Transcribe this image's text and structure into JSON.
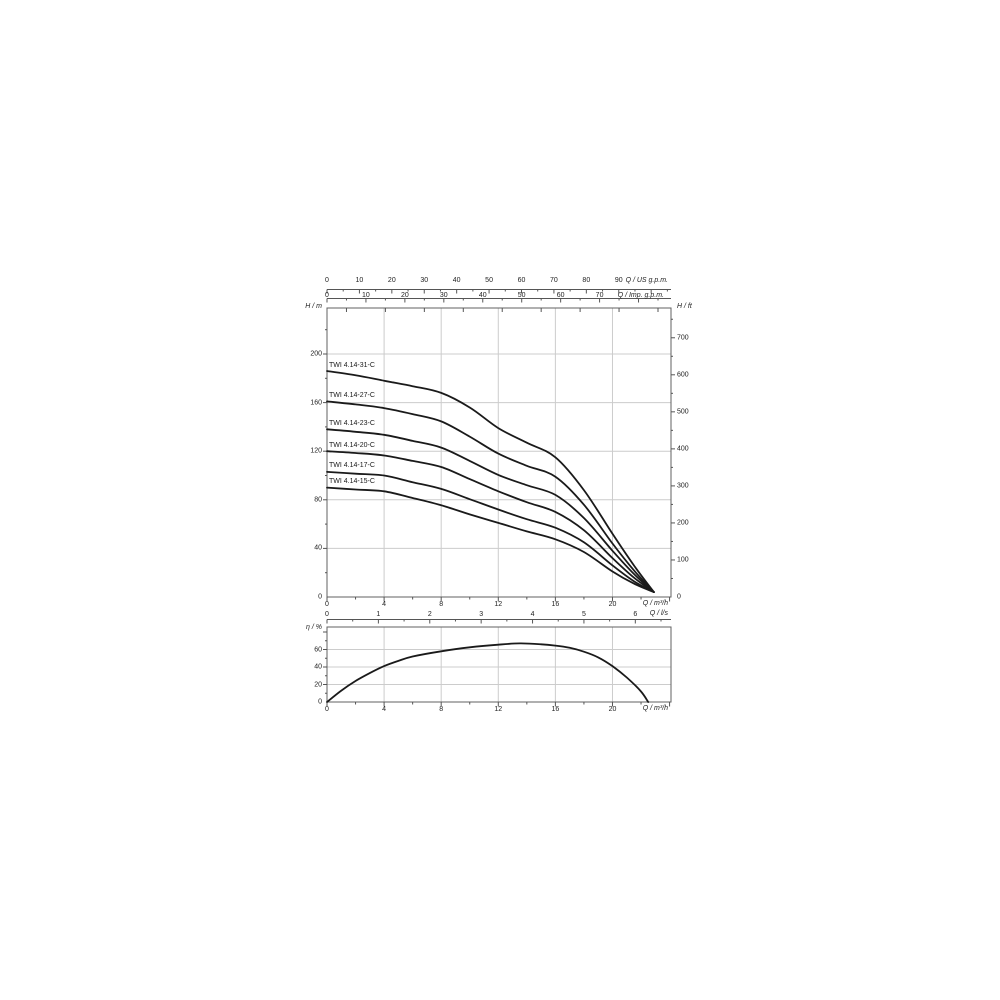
{
  "colors": {
    "background": "#ffffff",
    "curve": "#1a1a1a",
    "grid": "#cccccc",
    "frame": "#606060",
    "axis": "#555555",
    "text": "#222222"
  },
  "axes": {
    "us": {
      "label": "Q / US g.p.m.",
      "ticks": [
        0,
        10,
        20,
        30,
        40,
        50,
        60,
        70,
        80,
        90
      ]
    },
    "imp": {
      "label": "Q / Imp. g.p.m.",
      "ticks": [
        0,
        10,
        20,
        30,
        40,
        50,
        60,
        70
      ]
    },
    "h_m": {
      "label": "H / m",
      "ticks": [
        0,
        40,
        80,
        120,
        160,
        200
      ]
    },
    "h_ft": {
      "label": "H / ft",
      "ticks": [
        0,
        100,
        200,
        300,
        400,
        500,
        600,
        700
      ]
    },
    "q_m3h": {
      "label": "Q / m³/h",
      "ticks": [
        0,
        4,
        8,
        12,
        16,
        20
      ]
    },
    "q_ls": {
      "label": "Q / l/s",
      "ticks": [
        0,
        1,
        2,
        3,
        4,
        5,
        6
      ]
    },
    "eta": {
      "label": "η / %",
      "ticks": [
        0,
        20,
        40,
        60
      ]
    }
  },
  "chart_data": [
    {
      "type": "line",
      "xlabel": "Q / m³/h",
      "ylabel": "H / m",
      "y2label": "H / ft",
      "x2label_us": "Q / US g.p.m.",
      "x2label_imp": "Q / Imp. g.p.m.",
      "x3label": "Q / l/s",
      "xlim": [
        0,
        24.1
      ],
      "ylim": [
        0,
        238
      ],
      "grid": true,
      "legend_position": "inline-left",
      "series": [
        {
          "name": "TWI 4.14-31-C",
          "points": [
            [
              0,
              186
            ],
            [
              2,
              182.5
            ],
            [
              4,
              178
            ],
            [
              6,
              173.5
            ],
            [
              8,
              168
            ],
            [
              10,
              156
            ],
            [
              12,
              139
            ],
            [
              14,
              127
            ],
            [
              16,
              115
            ],
            [
              18,
              88
            ],
            [
              20,
              52
            ],
            [
              21.5,
              26
            ],
            [
              22.9,
              4
            ]
          ]
        },
        {
          "name": "TWI 4.14-27-C",
          "points": [
            [
              0,
              161
            ],
            [
              2,
              158.5
            ],
            [
              4,
              155.5
            ],
            [
              6,
              150.5
            ],
            [
              8,
              144.5
            ],
            [
              10,
              132
            ],
            [
              12,
              118
            ],
            [
              14,
              108
            ],
            [
              16,
              99
            ],
            [
              18,
              76
            ],
            [
              20,
              44
            ],
            [
              21.5,
              22
            ],
            [
              22.9,
              4
            ]
          ]
        },
        {
          "name": "TWI 4.14-23-C",
          "points": [
            [
              0,
              138
            ],
            [
              2,
              136
            ],
            [
              4,
              133.5
            ],
            [
              6,
              128.5
            ],
            [
              8,
              123
            ],
            [
              10,
              112
            ],
            [
              12,
              100.5
            ],
            [
              14,
              92
            ],
            [
              16,
              84
            ],
            [
              18,
              65
            ],
            [
              20,
              38
            ],
            [
              21.5,
              19
            ],
            [
              22.9,
              4
            ]
          ]
        },
        {
          "name": "TWI 4.14-20-C",
          "points": [
            [
              0,
              120
            ],
            [
              2,
              118.5
            ],
            [
              4,
              116.5
            ],
            [
              6,
              112
            ],
            [
              8,
              107
            ],
            [
              10,
              97
            ],
            [
              12,
              87
            ],
            [
              14,
              78
            ],
            [
              16,
              70
            ],
            [
              18,
              55
            ],
            [
              20,
              32
            ],
            [
              21.5,
              16
            ],
            [
              22.9,
              4
            ]
          ]
        },
        {
          "name": "TWI 4.14-17-C",
          "points": [
            [
              0,
              103
            ],
            [
              2,
              101.5
            ],
            [
              4,
              100
            ],
            [
              6,
              94.5
            ],
            [
              8,
              89
            ],
            [
              10,
              80.5
            ],
            [
              12,
              72
            ],
            [
              14,
              64
            ],
            [
              16,
              57
            ],
            [
              18,
              45
            ],
            [
              20,
              26
            ],
            [
              21.5,
              13
            ],
            [
              22.9,
              4
            ]
          ]
        },
        {
          "name": "TWI 4.14-15-C",
          "points": [
            [
              0,
              90
            ],
            [
              2,
              88.5
            ],
            [
              4,
              87
            ],
            [
              6,
              81.5
            ],
            [
              8,
              75.5
            ],
            [
              10,
              68
            ],
            [
              12,
              61
            ],
            [
              14,
              54
            ],
            [
              16,
              47.5
            ],
            [
              18,
              37
            ],
            [
              20,
              21
            ],
            [
              21.5,
              11
            ],
            [
              22.9,
              4
            ]
          ]
        }
      ]
    },
    {
      "type": "line",
      "xlabel": "Q / m³/h",
      "ylabel": "η / %",
      "xlim": [
        0,
        24.1
      ],
      "ylim": [
        0,
        85
      ],
      "grid": true,
      "series": [
        {
          "name": "efficiency",
          "points": [
            [
              0,
              0
            ],
            [
              1,
              13
            ],
            [
              2,
              24
            ],
            [
              3,
              33
            ],
            [
              4,
              41
            ],
            [
              5,
              47
            ],
            [
              6,
              52
            ],
            [
              8,
              58
            ],
            [
              10,
              62.5
            ],
            [
              12,
              65.5
            ],
            [
              13.5,
              67
            ],
            [
              15,
              66
            ],
            [
              16,
              64.5
            ],
            [
              17,
              62
            ],
            [
              18,
              57.5
            ],
            [
              19,
              51
            ],
            [
              20,
              41
            ],
            [
              21,
              28
            ],
            [
              22,
              12
            ],
            [
              22.5,
              0
            ]
          ]
        }
      ]
    }
  ]
}
